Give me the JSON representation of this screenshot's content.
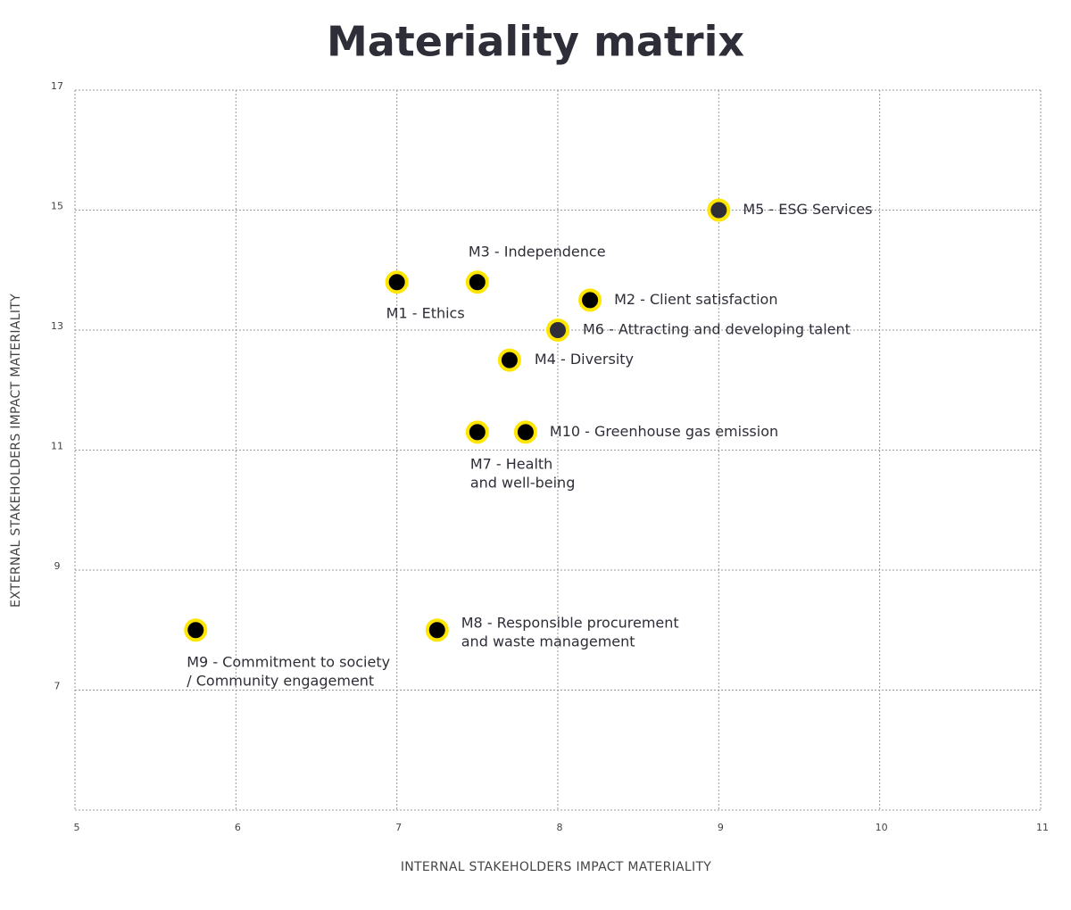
{
  "chart_data": {
    "type": "scatter",
    "title": "Materiality matrix",
    "x_label": "INTERNAL STAKEHOLDERS IMPACT MATERIALITY",
    "y_label": "EXTERNAL STAKEHOLDERS IMPACT MATERIALITY",
    "xlim": [
      5,
      11
    ],
    "ylim": [
      5,
      17
    ],
    "xticks": [
      5,
      6,
      7,
      8,
      9,
      10,
      11
    ],
    "yticks": [
      7,
      9,
      11,
      13,
      15,
      17
    ],
    "grid": true,
    "ring_color": "#ffe600",
    "point_labels": [
      "M1 - Ethics",
      "M3 - Independence",
      "M2 - Client satisfaction",
      "M6 - Attracting and developing talent",
      "M4 - Diversity",
      "M5 - ESG Services",
      "M7 - Health\nand well-being",
      "M10 - Greenhouse gas emission",
      "M8 - Responsible procurement\nand waste management",
      "M9 - Commitment to society\n/ Community engagement"
    ],
    "x": [
      7.0,
      7.5,
      8.2,
      8.0,
      7.7,
      9.0,
      7.5,
      7.8,
      7.25,
      5.75
    ],
    "y": [
      13.8,
      13.8,
      13.5,
      13.0,
      12.5,
      15.0,
      11.3,
      11.3,
      8.0,
      8.0
    ],
    "colors": [
      "#000000",
      "#000000",
      "#000000",
      "#2e2e38",
      "#000000",
      "#2e2e38",
      "#000000",
      "#000000",
      "#000000",
      "#000000"
    ]
  }
}
